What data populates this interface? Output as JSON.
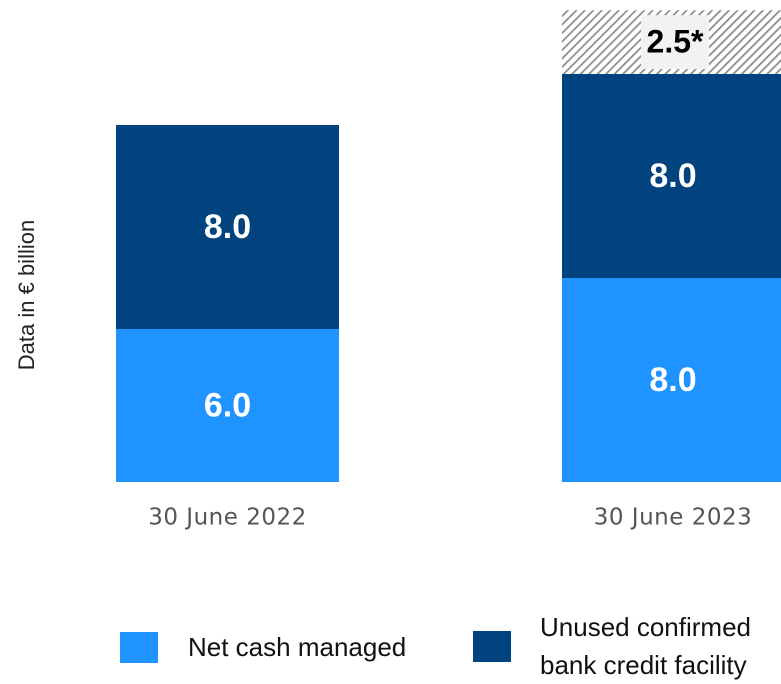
{
  "chart_data": {
    "type": "stacked_bar",
    "y_label": "Data in € billion",
    "categories": [
      "30 June 2022",
      "30 June 2023"
    ],
    "series": [
      {
        "name": "Net cash managed",
        "color": "#1f93ff",
        "values": [
          6.0,
          8.0
        ],
        "value_labels": [
          "6.0",
          "8.0"
        ]
      },
      {
        "name": "Unused confirmed bank credit facility",
        "color": "#00437f",
        "values": [
          8.0,
          8.0
        ],
        "value_labels": [
          "8.0",
          "8.0"
        ]
      },
      {
        "color": "#9a9a9a",
        "pattern": "hatch",
        "values": [
          null,
          2.5
        ],
        "value_labels": [
          null,
          "2.5*"
        ]
      }
    ]
  }
}
